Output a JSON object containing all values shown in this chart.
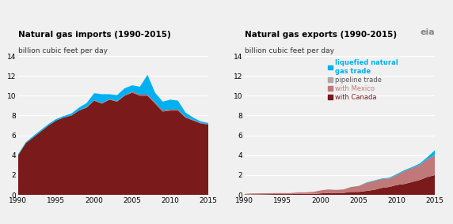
{
  "imports_title": "Natural gas imports (1990-2015)",
  "exports_title": "Natural gas exports (1990-2015)",
  "ylabel": "billion cubic feet per day",
  "years": [
    1990,
    1991,
    1992,
    1993,
    1994,
    1995,
    1996,
    1997,
    1998,
    1999,
    2000,
    2001,
    2002,
    2003,
    2004,
    2005,
    2006,
    2007,
    2008,
    2009,
    2010,
    2011,
    2012,
    2013,
    2014,
    2015
  ],
  "imports_canada": [
    4.0,
    5.2,
    5.8,
    6.4,
    7.0,
    7.5,
    7.8,
    8.0,
    8.5,
    8.8,
    9.5,
    9.2,
    9.6,
    9.4,
    10.0,
    10.3,
    10.0,
    10.0,
    9.2,
    8.4,
    8.5,
    8.5,
    7.8,
    7.5,
    7.2,
    7.1
  ],
  "imports_lng": [
    0.1,
    0.1,
    0.15,
    0.15,
    0.15,
    0.15,
    0.15,
    0.2,
    0.3,
    0.4,
    0.7,
    0.9,
    0.5,
    0.6,
    0.7,
    0.65,
    0.8,
    2.0,
    1.0,
    0.9,
    1.0,
    0.9,
    0.45,
    0.25,
    0.15,
    0.1
  ],
  "imports_mexico": [
    0.0,
    0.0,
    0.0,
    0.0,
    0.0,
    0.0,
    0.0,
    0.0,
    0.0,
    0.05,
    0.05,
    0.05,
    0.05,
    0.05,
    0.05,
    0.1,
    0.1,
    0.1,
    0.1,
    0.1,
    0.1,
    0.1,
    0.05,
    0.05,
    0.05,
    0.05
  ],
  "exports_canada": [
    0.05,
    0.05,
    0.06,
    0.07,
    0.08,
    0.08,
    0.08,
    0.1,
    0.1,
    0.1,
    0.15,
    0.2,
    0.2,
    0.2,
    0.3,
    0.3,
    0.4,
    0.5,
    0.7,
    0.8,
    1.0,
    1.1,
    1.3,
    1.5,
    1.8,
    2.0
  ],
  "exports_mexico": [
    0.05,
    0.1,
    0.1,
    0.1,
    0.1,
    0.1,
    0.1,
    0.15,
    0.15,
    0.2,
    0.3,
    0.35,
    0.3,
    0.35,
    0.5,
    0.6,
    0.8,
    0.9,
    0.9,
    0.85,
    1.0,
    1.3,
    1.4,
    1.5,
    1.8,
    2.0
  ],
  "exports_lng": [
    0.0,
    0.0,
    0.0,
    0.0,
    0.0,
    0.0,
    0.0,
    0.0,
    0.0,
    0.0,
    0.0,
    0.0,
    0.0,
    0.0,
    0.0,
    0.0,
    0.05,
    0.05,
    0.05,
    0.08,
    0.1,
    0.1,
    0.1,
    0.15,
    0.2,
    0.5
  ],
  "color_canada_imports": "#7a1a1a",
  "color_mexico_imports": "#c0504d",
  "color_lng_imports": "#00b0f0",
  "color_canada_exports": "#7a1a1a",
  "color_mexico_exports": "#c07878",
  "color_lng_exports": "#00b0f0",
  "ylim": [
    0,
    14
  ],
  "yticks": [
    0,
    2,
    4,
    6,
    8,
    10,
    12,
    14
  ],
  "xticks": [
    1990,
    1995,
    2000,
    2005,
    2010,
    2015
  ],
  "bg_color": "#f0f0f0",
  "legend_lng": "liquefied natural\ngas trade",
  "legend_pipeline": "pipeline trade",
  "legend_mexico": "with Mexico",
  "legend_canada": "with Canada",
  "title_fontsize": 7.5,
  "subtitle_fontsize": 6.5,
  "tick_fontsize": 6.5
}
